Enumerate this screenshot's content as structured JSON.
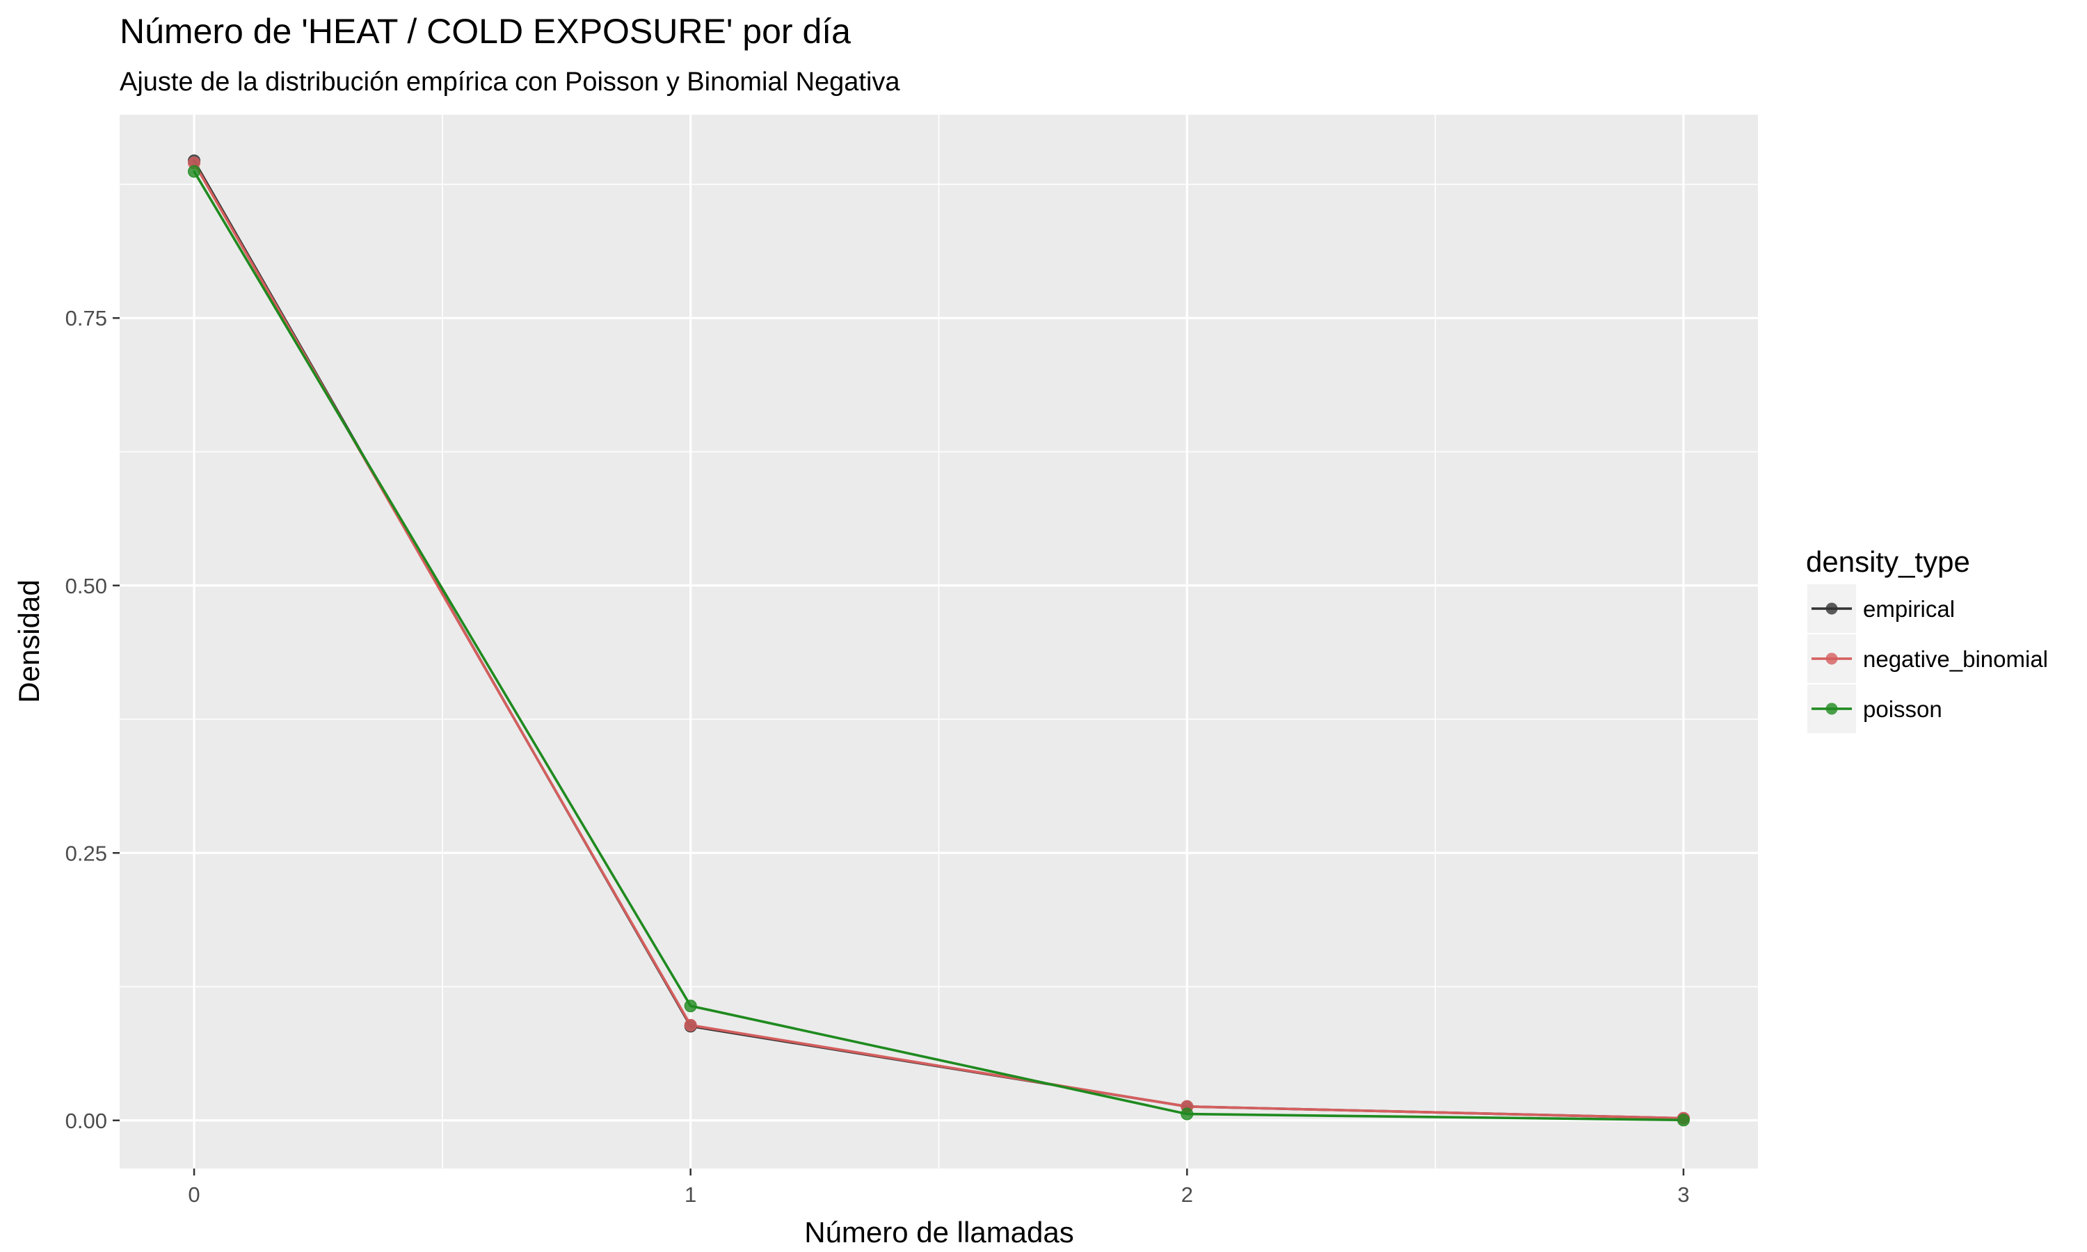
{
  "chart_data": {
    "type": "line",
    "title": "Número de 'HEAT / COLD EXPOSURE' por día",
    "subtitle": "Ajuste de la distribución empírica con Poisson y Binomial Negativa",
    "xlabel": "Número de llamadas",
    "ylabel": "Densidad",
    "x": [
      0,
      1,
      2,
      3
    ],
    "xlim": [
      -0.15,
      3.15
    ],
    "ylim": [
      -0.045,
      0.94
    ],
    "x_ticks": [
      0,
      1,
      2,
      3
    ],
    "x_tick_labels": [
      "0",
      "1",
      "2",
      "3"
    ],
    "y_ticks": [
      0,
      0.25,
      0.5,
      0.75
    ],
    "y_tick_labels": [
      "0.00",
      "0.25",
      "0.50",
      "0.75"
    ],
    "grid": true,
    "panel_background": "#ebebeb",
    "legend": {
      "title": "density_type",
      "position": "right"
    },
    "series": [
      {
        "name": "empirical",
        "color": "#333333",
        "values": [
          0.897,
          0.088,
          0.013,
          0.002
        ]
      },
      {
        "name": "negative_binomial",
        "color": "#d55e5e",
        "values": [
          0.895,
          0.089,
          0.013,
          0.002
        ]
      },
      {
        "name": "poisson",
        "color": "#1f8a1f",
        "values": [
          0.887,
          0.107,
          0.006,
          0.0003
        ]
      }
    ]
  }
}
